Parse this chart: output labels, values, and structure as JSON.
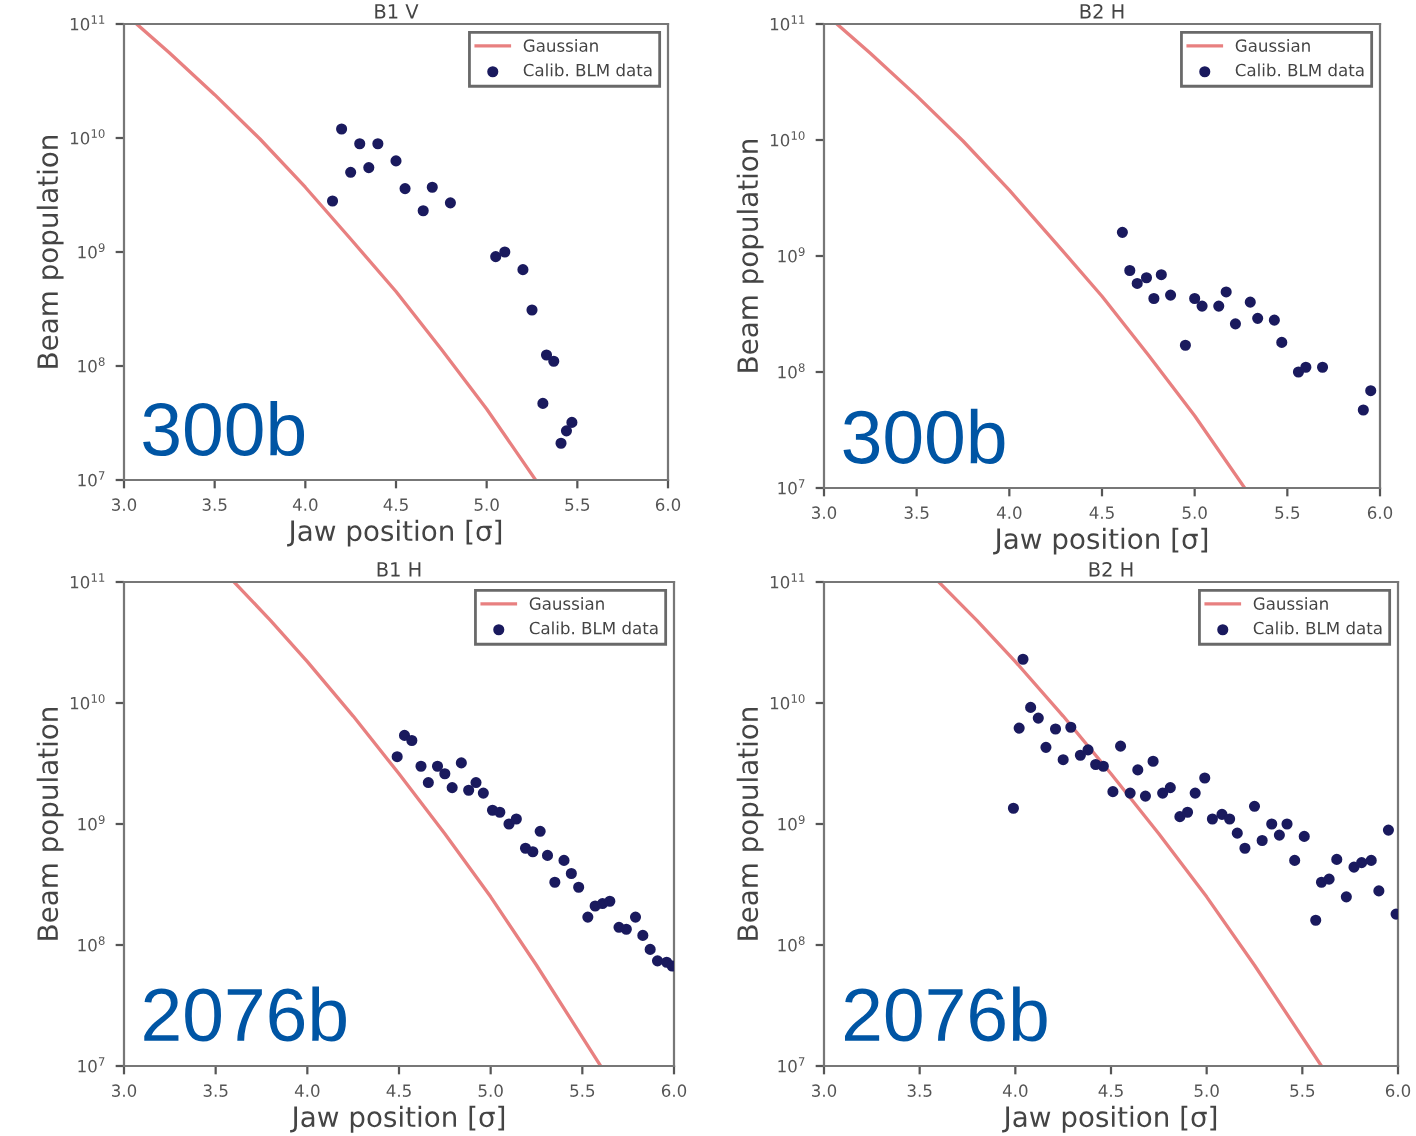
{
  "chart_data": [
    {
      "type": "scatter",
      "title": "B1 V",
      "xlabel": "Jaw position [σ]",
      "ylabel": "Beam population",
      "log": "y",
      "xlim": [
        3.0,
        6.0
      ],
      "ylim": [
        10000000.0,
        100000000000.0
      ],
      "xticks": [
        {
          "value": 3.0,
          "label": "3.0"
        },
        {
          "value": 3.5,
          "label": "3.5"
        },
        {
          "value": 4.0,
          "label": "4.0"
        },
        {
          "value": 4.5,
          "label": "4.5"
        },
        {
          "value": 5.0,
          "label": "5.0"
        },
        {
          "value": 5.5,
          "label": "5.5"
        },
        {
          "value": 6.0,
          "label": "6.0"
        }
      ],
      "yticks": [
        {
          "value": 10000000.0,
          "label": "10$^{7}$"
        },
        {
          "value": 100000000.0,
          "label": "10$^{8}$"
        },
        {
          "value": 1000000000.0,
          "label": "10$^{9}$"
        },
        {
          "value": 10000000000.0,
          "label": "10$^{10}$"
        },
        {
          "value": 100000000000.0,
          "label": "10$^{11}$"
        }
      ],
      "grid": false,
      "legend": "top right",
      "annotations": [
        "300b"
      ],
      "series": [
        {
          "name": "Gaussian",
          "type": "line",
          "color": "#e88080",
          "x": [
            3.07,
            3.25,
            3.5,
            3.75,
            4.0,
            4.25,
            4.5,
            4.75,
            5.0,
            5.27
          ],
          "values": [
            100000000000.0,
            56000000000.0,
            24000000000.0,
            9800000000.0,
            3700000000.0,
            1300000000.0,
            450000000.0,
            140000000.0,
            42000000.0,
            10000000.0
          ]
        },
        {
          "name": "Calib. BLM data",
          "marker": "circle",
          "color": "#1a1a5e",
          "x": [
            4.15,
            4.2,
            4.25,
            4.3,
            4.35,
            4.4,
            4.5,
            4.55,
            4.65,
            4.7,
            4.8,
            5.05,
            5.1,
            5.2,
            5.25,
            5.33,
            5.37,
            5.31,
            5.47,
            5.44,
            5.41
          ],
          "values": [
            2800000000.0,
            12000000000.0,
            5000000000.0,
            8900000000.0,
            5500000000.0,
            8900000000.0,
            6300000000.0,
            3600000000.0,
            2300000000.0,
            3700000000.0,
            2700000000.0,
            910000000.0,
            1000000000.0,
            700000000.0,
            310000000.0,
            125000000.0,
            110000000.0,
            47000000.0,
            32000000.0,
            27000000.0,
            21000000.0
          ]
        }
      ]
    },
    {
      "type": "scatter",
      "title": "B2 H",
      "xlabel": "Jaw position [σ]",
      "ylabel": "Beam population",
      "log": "y",
      "xlim": [
        3.0,
        6.0
      ],
      "ylim": [
        10000000.0,
        100000000000.0
      ],
      "xticks": [
        {
          "value": 3.0,
          "label": "3.0"
        },
        {
          "value": 3.5,
          "label": "3.5"
        },
        {
          "value": 4.0,
          "label": "4.0"
        },
        {
          "value": 4.5,
          "label": "4.5"
        },
        {
          "value": 5.0,
          "label": "5.0"
        },
        {
          "value": 5.5,
          "label": "5.5"
        },
        {
          "value": 6.0,
          "label": "6.0"
        }
      ],
      "yticks": [
        {
          "value": 10000000.0,
          "label": "10$^{7}$"
        },
        {
          "value": 100000000.0,
          "label": "10$^{8}$"
        },
        {
          "value": 1000000000.0,
          "label": "10$^{9}$"
        },
        {
          "value": 10000000000.0,
          "label": "10$^{10}$"
        },
        {
          "value": 100000000000.0,
          "label": "10$^{11}$"
        }
      ],
      "grid": false,
      "legend": "top right",
      "annotations": [
        "300b"
      ],
      "series": [
        {
          "name": "Gaussian",
          "type": "line",
          "color": "#e88080",
          "x": [
            3.07,
            3.25,
            3.5,
            3.75,
            4.0,
            4.25,
            4.5,
            4.75,
            5.0,
            5.27
          ],
          "values": [
            100000000000.0,
            56000000000.0,
            24000000000.0,
            9800000000.0,
            3700000000.0,
            1300000000.0,
            450000000.0,
            140000000.0,
            42000000.0,
            10000000.0
          ]
        },
        {
          "name": "Calib. BLM data",
          "marker": "circle",
          "color": "#1a1a5e",
          "x": [
            4.61,
            4.65,
            4.69,
            4.74,
            4.78,
            4.82,
            4.87,
            4.95,
            5.0,
            5.04,
            5.13,
            5.17,
            5.22,
            5.3,
            5.34,
            5.43,
            5.47,
            5.56,
            5.6,
            5.69,
            5.91,
            5.95
          ],
          "values": [
            1600000000.0,
            750000000.0,
            580000000.0,
            650000000.0,
            430000000.0,
            690000000.0,
            460000000.0,
            170000000.0,
            430000000.0,
            370000000.0,
            370000000.0,
            490000000.0,
            260000000.0,
            400000000.0,
            290000000.0,
            280000000.0,
            180000000.0,
            100000000.0,
            110000000.0,
            110000000.0,
            47000000.0,
            69000000.0
          ]
        }
      ]
    },
    {
      "type": "scatter",
      "title": "B1 H",
      "xlabel": "Jaw position [σ]",
      "ylabel": "Beam population",
      "log": "y",
      "xlim": [
        3.0,
        6.0
      ],
      "ylim": [
        10000000.0,
        100000000000.0
      ],
      "xticks": [
        {
          "value": 3.0,
          "label": "3.0"
        },
        {
          "value": 3.5,
          "label": "3.5"
        },
        {
          "value": 4.0,
          "label": "4.0"
        },
        {
          "value": 4.5,
          "label": "4.5"
        },
        {
          "value": 5.0,
          "label": "5.0"
        },
        {
          "value": 5.5,
          "label": "5.5"
        },
        {
          "value": 6.0,
          "label": "6.0"
        }
      ],
      "yticks": [
        {
          "value": 10000000.0,
          "label": "10$^{7}$"
        },
        {
          "value": 100000000.0,
          "label": "10$^{8}$"
        },
        {
          "value": 1000000000.0,
          "label": "10$^{9}$"
        },
        {
          "value": 10000000000.0,
          "label": "10$^{10}$"
        },
        {
          "value": 100000000000.0,
          "label": "10$^{11}$"
        }
      ],
      "grid": false,
      "legend": "top right",
      "annotations": [
        "2076b"
      ],
      "series": [
        {
          "name": "Gaussian",
          "type": "line",
          "color": "#e88080",
          "x": [
            3.6,
            3.8,
            4.0,
            4.25,
            4.5,
            4.75,
            5.0,
            5.25,
            5.6
          ],
          "values": [
            100000000000.0,
            48000000000.0,
            22000000000.0,
            7800000000.0,
            2600000000.0,
            830000000.0,
            250000000.0,
            68000000.0,
            10000000.0
          ]
        },
        {
          "name": "Calib. BLM data",
          "marker": "circle",
          "color": "#1a1a5e",
          "x": [
            4.49,
            4.53,
            4.57,
            4.62,
            4.66,
            4.71,
            4.75,
            4.79,
            4.84,
            4.88,
            4.92,
            4.96,
            5.01,
            5.05,
            5.1,
            5.14,
            5.19,
            5.23,
            5.27,
            5.31,
            5.35,
            5.4,
            5.44,
            5.48,
            5.53,
            5.57,
            5.61,
            5.65,
            5.7,
            5.74,
            5.79,
            5.83,
            5.87,
            5.91,
            5.96,
            5.99
          ],
          "values": [
            3600000000.0,
            5400000000.0,
            4900000000.0,
            3000000000.0,
            2200000000.0,
            3000000000.0,
            2600000000.0,
            2000000000.0,
            3200000000.0,
            1900000000.0,
            2200000000.0,
            1800000000.0,
            1300000000.0,
            1250000000.0,
            1000000000.0,
            1100000000.0,
            630000000.0,
            590000000.0,
            870000000.0,
            550000000.0,
            330000000.0,
            500000000.0,
            390000000.0,
            300000000.0,
            170000000.0,
            210000000.0,
            220000000.0,
            230000000.0,
            140000000.0,
            135000000.0,
            170000000.0,
            120000000.0,
            92000000.0,
            74000000.0,
            72000000.0,
            67000000.0
          ]
        }
      ]
    },
    {
      "type": "scatter",
      "title": "B2 H",
      "xlabel": "Jaw position [σ]",
      "ylabel": "Beam population",
      "log": "y",
      "xlim": [
        3.0,
        6.0
      ],
      "ylim": [
        10000000.0,
        100000000000.0
      ],
      "xticks": [
        {
          "value": 3.0,
          "label": "3.0"
        },
        {
          "value": 3.5,
          "label": "3.5"
        },
        {
          "value": 4.0,
          "label": "4.0"
        },
        {
          "value": 4.5,
          "label": "4.5"
        },
        {
          "value": 5.0,
          "label": "5.0"
        },
        {
          "value": 5.5,
          "label": "5.5"
        },
        {
          "value": 6.0,
          "label": "6.0"
        }
      ],
      "yticks": [
        {
          "value": 10000000.0,
          "label": "10$^{7}$"
        },
        {
          "value": 100000000.0,
          "label": "10$^{8}$"
        },
        {
          "value": 1000000000.0,
          "label": "10$^{9}$"
        },
        {
          "value": 10000000000.0,
          "label": "10$^{10}$"
        },
        {
          "value": 100000000000.0,
          "label": "10$^{11}$"
        }
      ],
      "grid": false,
      "legend": "top right",
      "annotations": [
        "2076b"
      ],
      "series": [
        {
          "name": "Gaussian",
          "type": "line",
          "color": "#e88080",
          "x": [
            3.6,
            3.8,
            4.0,
            4.25,
            4.5,
            4.75,
            5.0,
            5.25,
            5.6
          ],
          "values": [
            100000000000.0,
            48000000000.0,
            22000000000.0,
            7800000000.0,
            2600000000.0,
            830000000.0,
            250000000.0,
            68000000.0,
            10000000.0
          ]
        },
        {
          "name": "Calib. BLM data",
          "marker": "circle",
          "color": "#1a1a5e",
          "x": [
            3.99,
            4.02,
            4.04,
            4.08,
            4.12,
            4.16,
            4.21,
            4.25,
            4.29,
            4.34,
            4.38,
            4.42,
            4.46,
            4.51,
            4.55,
            4.6,
            4.64,
            4.68,
            4.72,
            4.77,
            4.81,
            4.86,
            4.9,
            4.94,
            4.99,
            5.03,
            5.08,
            5.12,
            5.16,
            5.2,
            5.25,
            5.29,
            5.34,
            5.38,
            5.42,
            5.46,
            5.51,
            5.57,
            5.6,
            5.64,
            5.68,
            5.73,
            5.77,
            5.81,
            5.86,
            5.9,
            5.95,
            5.99
          ],
          "values": [
            1350000000.0,
            6200000000.0,
            23000000000.0,
            9200000000.0,
            7500000000.0,
            4300000000.0,
            6100000000.0,
            3400000000.0,
            6300000000.0,
            3700000000.0,
            4100000000.0,
            3100000000.0,
            3000000000.0,
            1850000000.0,
            4400000000.0,
            1800000000.0,
            2800000000.0,
            1700000000.0,
            3300000000.0,
            1800000000.0,
            2000000000.0,
            1150000000.0,
            1250000000.0,
            1800000000.0,
            2400000000.0,
            1100000000.0,
            1200000000.0,
            1100000000.0,
            840000000.0,
            630000000.0,
            1400000000.0,
            730000000.0,
            1000000000.0,
            810000000.0,
            1000000000.0,
            500000000.0,
            790000000.0,
            160000000.0,
            330000000.0,
            350000000.0,
            510000000.0,
            250000000.0,
            440000000.0,
            480000000.0,
            500000000.0,
            280000000.0,
            890000000.0,
            180000000.0
          ]
        }
      ]
    }
  ]
}
